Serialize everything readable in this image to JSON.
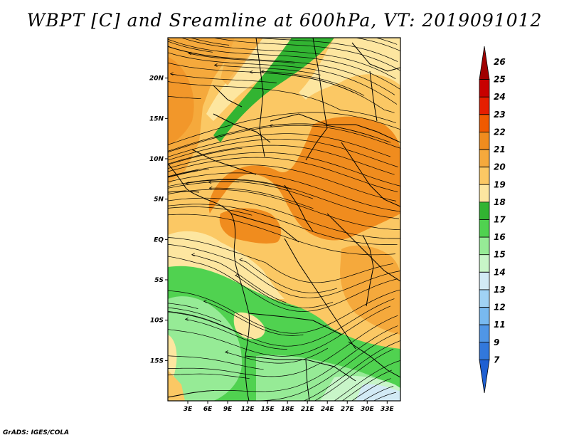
{
  "title": "WBPT [C] and Sreamline at 600hPa, VT: 2019091012",
  "footer": "GrADS: IGES/COLA",
  "map": {
    "projection": "lat-lon",
    "lon_range": [
      0,
      35
    ],
    "lat_range": [
      -20,
      25
    ],
    "lat_ticks": [
      {
        "value": 20,
        "label": "20N"
      },
      {
        "value": 15,
        "label": "15N"
      },
      {
        "value": 10,
        "label": "10N"
      },
      {
        "value": 5,
        "label": "5N"
      },
      {
        "value": 0,
        "label": "EQ"
      },
      {
        "value": -5,
        "label": "5S"
      },
      {
        "value": -10,
        "label": "10S"
      },
      {
        "value": -15,
        "label": "15S"
      }
    ],
    "lon_ticks": [
      {
        "value": 3,
        "label": "3E"
      },
      {
        "value": 6,
        "label": "6E"
      },
      {
        "value": 9,
        "label": "9E"
      },
      {
        "value": 12,
        "label": "12E"
      },
      {
        "value": 15,
        "label": "15E"
      },
      {
        "value": 18,
        "label": "18E"
      },
      {
        "value": 21,
        "label": "21E"
      },
      {
        "value": 24,
        "label": "24E"
      },
      {
        "value": 27,
        "label": "27E"
      },
      {
        "value": 30,
        "label": "30E"
      },
      {
        "value": 33,
        "label": "33E"
      }
    ],
    "field": "wet-bulb potential temperature",
    "overlay": "streamlines"
  },
  "colorbar": {
    "labels": [
      "26",
      "25",
      "24",
      "23",
      "22",
      "21",
      "20",
      "19",
      "18",
      "17",
      "16",
      "15",
      "14",
      "13",
      "12",
      "11",
      "9",
      "7"
    ],
    "colors": [
      "#a00000",
      "#c80000",
      "#e61e00",
      "#f05a00",
      "#f08c1e",
      "#f5a93c",
      "#fbc864",
      "#fde6a0",
      "#32b432",
      "#50d250",
      "#96eb96",
      "#c8f5c8",
      "#d2eaf5",
      "#a0d2f5",
      "#78b9f0",
      "#5096e6",
      "#3278dc",
      "#1e5fd2"
    ]
  }
}
